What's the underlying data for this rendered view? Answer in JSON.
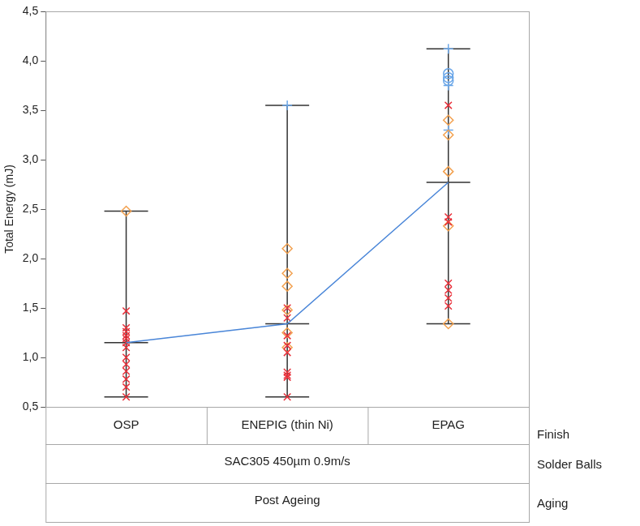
{
  "chart_data": {
    "type": "scatter",
    "y_label": "Total Energy (mJ)",
    "x_label": "Finish",
    "categories": [
      "OSP",
      "ENEPIG (thin Ni)",
      "EPAG"
    ],
    "x_groups": [
      {
        "label": "Solder Balls",
        "text": "SAC305 450µm 0.9m/s"
      },
      {
        "label": "Aging",
        "text": "Post Ageing"
      }
    ],
    "ylim": [
      0.5,
      4.5
    ],
    "yticks": [
      {
        "value": 0.5,
        "label": "0,5"
      },
      {
        "value": 1.0,
        "label": "1,0"
      },
      {
        "value": 1.5,
        "label": "1,5"
      },
      {
        "value": 2.0,
        "label": "2,0"
      },
      {
        "value": 2.5,
        "label": "2,5"
      },
      {
        "value": 3.0,
        "label": "3,0"
      },
      {
        "value": 3.5,
        "label": "3,5"
      },
      {
        "value": 4.0,
        "label": "4,0"
      },
      {
        "value": 4.5,
        "label": "4,5"
      }
    ],
    "grid": false,
    "range_low": [
      0.6,
      0.6,
      1.34
    ],
    "range_high": [
      2.48,
      3.55,
      4.12
    ],
    "series": [
      {
        "type": "scatter",
        "marker": "x",
        "color": "#e8303a",
        "values": [
          [
            1.47,
            1.3,
            1.26,
            1.22,
            1.19,
            1.15,
            1.1,
            1.0,
            0.93,
            0.86,
            0.78,
            0.7,
            0.6
          ],
          [
            1.5,
            1.4,
            1.22,
            1.12,
            1.05,
            0.85,
            0.82,
            0.8,
            0.6
          ],
          [
            3.55,
            2.42,
            2.37,
            1.75,
            1.68,
            1.6,
            1.52
          ]
        ]
      },
      {
        "type": "scatter",
        "marker": "diamond",
        "color": "#f2a04e",
        "values": [
          [
            2.48
          ],
          [
            2.1,
            1.85,
            1.72,
            1.48,
            1.25,
            1.1
          ],
          [
            3.4,
            3.25,
            2.88,
            2.33,
            1.34
          ]
        ]
      },
      {
        "type": "scatter",
        "marker": "plus",
        "color": "#6aa6e8",
        "values": [
          [],
          [
            3.55
          ],
          [
            4.12,
            3.75,
            3.3
          ]
        ]
      },
      {
        "type": "scatter",
        "marker": "circle",
        "color": "#6aa6e8",
        "values": [
          [],
          [],
          [
            3.87,
            3.83,
            3.8
          ]
        ]
      },
      {
        "type": "line",
        "color": "#4a86d8",
        "values": [
          1.15,
          1.34,
          2.77
        ]
      }
    ]
  }
}
